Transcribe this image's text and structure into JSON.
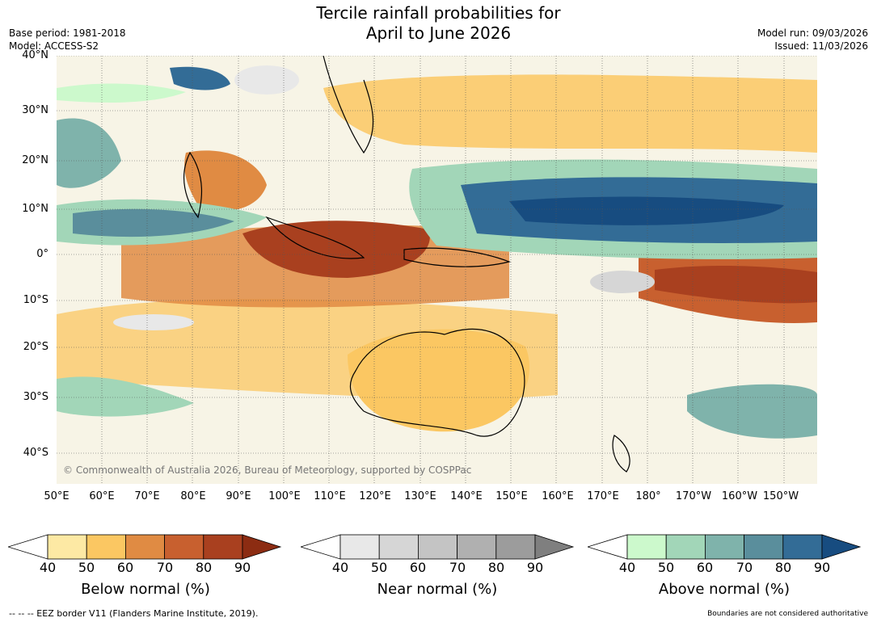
{
  "title_line1": "Tercile rainfall probabilities for",
  "title_line2": "April to June 2026",
  "base_period": "Base period: 1981-2018",
  "model": "Model: ACCESS-S2",
  "model_run": "Model run: 09/03/2026",
  "issued": "Issued: 11/03/2026",
  "copyright": "© Commonwealth of Australia 2026, Bureau of Meteorology, supported by COSPPac",
  "lat_labels": [
    "40°N",
    "30°N",
    "20°N",
    "10°N",
    "0°",
    "10°S",
    "20°S",
    "30°S",
    "40°S"
  ],
  "lon_labels": [
    "50°E",
    "60°E",
    "70°E",
    "80°E",
    "90°E",
    "100°E",
    "110°E",
    "120°E",
    "130°E",
    "140°E",
    "150°E",
    "160°E",
    "170°E",
    "180°",
    "170°W",
    "160°W",
    "150°W"
  ],
  "colorbars": [
    {
      "title": "Below normal (%)",
      "ticks": [
        "40",
        "50",
        "60",
        "70",
        "80",
        "90"
      ],
      "colors": [
        "#ffffff",
        "#fde9a4",
        "#fbc762",
        "#e08b43",
        "#c8602f",
        "#a9401f",
        "#8c2c12"
      ]
    },
    {
      "title": "Near normal (%)",
      "ticks": [
        "40",
        "50",
        "60",
        "70",
        "80",
        "90"
      ],
      "colors": [
        "#ffffff",
        "#e8e8e8",
        "#d6d6d6",
        "#c4c4c4",
        "#b0b0b0",
        "#9c9c9c",
        "#7f7f7f"
      ]
    },
    {
      "title": "Above normal (%)",
      "ticks": [
        "40",
        "50",
        "60",
        "70",
        "80",
        "90"
      ],
      "colors": [
        "#ffffff",
        "#ccf9cc",
        "#a2d6b8",
        "#7fb3ab",
        "#5a8e9c",
        "#336c96",
        "#174c80"
      ]
    }
  ],
  "eez_note": "--  --  -- EEZ border V11 (Flanders Marine Institute, 2019).",
  "boundary_note": "Boundaries are not considered authoritative"
}
